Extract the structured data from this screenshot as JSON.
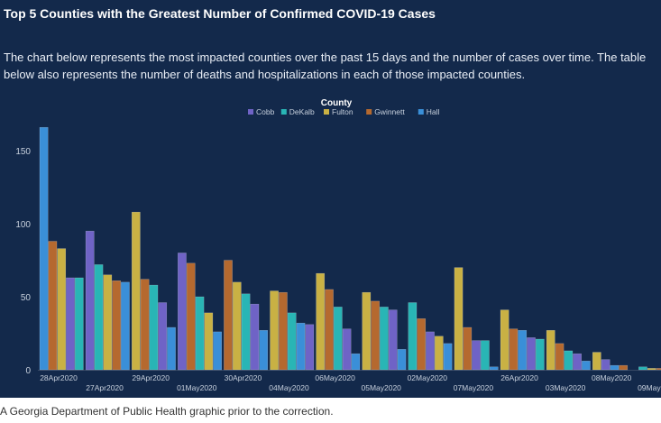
{
  "title": "Top 5 Counties with the Greatest Number of Confirmed COVID-19 Cases",
  "description": "The chart below represents the most impacted counties over the past 15 days and the number of cases over time. The table below also represents the number of deaths and hospitalizations in each of those impacted counties.",
  "caption": "A Georgia Department of Public Health graphic prior to the correction.",
  "chart_data": {
    "type": "bar",
    "title": "",
    "xlabel": "",
    "ylabel": "",
    "legend_title": "County",
    "legend_position": "top-center",
    "grid": false,
    "ylim": [
      0,
      168
    ],
    "yticks": [
      0,
      50,
      100,
      150
    ],
    "bars": [
      {
        "county": "Hall",
        "label": "28Apr2020",
        "value": 166,
        "color": "#3a8fd8"
      },
      {
        "county": "Gwinnett",
        "label": "",
        "value": 88,
        "color": "#b5692f"
      },
      {
        "county": "Fulton",
        "label": "",
        "value": 83,
        "color": "#c9b144"
      },
      {
        "county": "Cobb",
        "label": "",
        "value": 63,
        "color": "#6f63c6"
      },
      {
        "county": "DeKalb",
        "label": "",
        "value": 63,
        "color": "#29b5b5"
      },
      {
        "county": "Cobb",
        "label": "27Apr2020",
        "value": 95,
        "color": "#6f63c6"
      },
      {
        "county": "DeKalb",
        "label": "",
        "value": 72,
        "color": "#29b5b5"
      },
      {
        "county": "Fulton",
        "label": "",
        "value": 65,
        "color": "#c9b144"
      },
      {
        "county": "Gwinnett",
        "label": "",
        "value": 61,
        "color": "#b5692f"
      },
      {
        "county": "Hall",
        "label": "",
        "value": 60,
        "color": "#3a8fd8"
      },
      {
        "county": "Fulton",
        "label": "29Apr2020",
        "value": 108,
        "color": "#c9b144"
      },
      {
        "county": "Gwinnett",
        "label": "",
        "value": 62,
        "color": "#b5692f"
      },
      {
        "county": "DeKalb",
        "label": "",
        "value": 58,
        "color": "#29b5b5"
      },
      {
        "county": "Cobb",
        "label": "",
        "value": 46,
        "color": "#6f63c6"
      },
      {
        "county": "Hall",
        "label": "",
        "value": 29,
        "color": "#3a8fd8"
      },
      {
        "county": "Cobb",
        "label": "01May2020",
        "value": 80,
        "color": "#6f63c6"
      },
      {
        "county": "Gwinnett",
        "label": "",
        "value": 73,
        "color": "#b5692f"
      },
      {
        "county": "DeKalb",
        "label": "",
        "value": 50,
        "color": "#29b5b5"
      },
      {
        "county": "Fulton",
        "label": "",
        "value": 39,
        "color": "#c9b144"
      },
      {
        "county": "Hall",
        "label": "",
        "value": 26,
        "color": "#3a8fd8"
      },
      {
        "county": "Gwinnett",
        "label": "30Apr2020",
        "value": 75,
        "color": "#b5692f"
      },
      {
        "county": "Fulton",
        "label": "",
        "value": 60,
        "color": "#c9b144"
      },
      {
        "county": "DeKalb",
        "label": "",
        "value": 52,
        "color": "#29b5b5"
      },
      {
        "county": "Cobb",
        "label": "",
        "value": 45,
        "color": "#6f63c6"
      },
      {
        "county": "Hall",
        "label": "",
        "value": 27,
        "color": "#3a8fd8"
      },
      {
        "county": "Fulton",
        "label": "04May2020",
        "value": 54,
        "color": "#c9b144"
      },
      {
        "county": "Gwinnett",
        "label": "",
        "value": 53,
        "color": "#b5692f"
      },
      {
        "county": "DeKalb",
        "label": "",
        "value": 39,
        "color": "#29b5b5"
      },
      {
        "county": "Hall",
        "label": "",
        "value": 32,
        "color": "#3a8fd8"
      },
      {
        "county": "Cobb",
        "label": "",
        "value": 31,
        "color": "#6f63c6"
      },
      {
        "county": "Fulton",
        "label": "06May2020",
        "value": 66,
        "color": "#c9b144"
      },
      {
        "county": "Gwinnett",
        "label": "",
        "value": 55,
        "color": "#b5692f"
      },
      {
        "county": "DeKalb",
        "label": "",
        "value": 43,
        "color": "#29b5b5"
      },
      {
        "county": "Cobb",
        "label": "",
        "value": 28,
        "color": "#6f63c6"
      },
      {
        "county": "Hall",
        "label": "",
        "value": 11,
        "color": "#3a8fd8"
      },
      {
        "county": "Fulton",
        "label": "05May2020",
        "value": 53,
        "color": "#c9b144"
      },
      {
        "county": "Gwinnett",
        "label": "",
        "value": 47,
        "color": "#b5692f"
      },
      {
        "county": "DeKalb",
        "label": "",
        "value": 43,
        "color": "#29b5b5"
      },
      {
        "county": "Cobb",
        "label": "",
        "value": 41,
        "color": "#6f63c6"
      },
      {
        "county": "Hall",
        "label": "",
        "value": 14,
        "color": "#3a8fd8"
      },
      {
        "county": "DeKalb",
        "label": "02May2020",
        "value": 46,
        "color": "#29b5b5"
      },
      {
        "county": "Gwinnett",
        "label": "",
        "value": 35,
        "color": "#b5692f"
      },
      {
        "county": "Cobb",
        "label": "",
        "value": 26,
        "color": "#6f63c6"
      },
      {
        "county": "Fulton",
        "label": "",
        "value": 23,
        "color": "#c9b144"
      },
      {
        "county": "Hall",
        "label": "",
        "value": 18,
        "color": "#3a8fd8"
      },
      {
        "county": "Fulton",
        "label": "07May2020",
        "value": 70,
        "color": "#c9b144"
      },
      {
        "county": "Gwinnett",
        "label": "",
        "value": 29,
        "color": "#b5692f"
      },
      {
        "county": "Cobb",
        "label": "",
        "value": 20,
        "color": "#6f63c6"
      },
      {
        "county": "DeKalb",
        "label": "",
        "value": 20,
        "color": "#29b5b5"
      },
      {
        "county": "Hall",
        "label": "",
        "value": 2,
        "color": "#3a8fd8"
      },
      {
        "county": "Fulton",
        "label": "26Apr2020",
        "value": 41,
        "color": "#c9b144"
      },
      {
        "county": "Gwinnett",
        "label": "",
        "value": 28,
        "color": "#b5692f"
      },
      {
        "county": "Hall",
        "label": "",
        "value": 27,
        "color": "#3a8fd8"
      },
      {
        "county": "Cobb",
        "label": "",
        "value": 22,
        "color": "#6f63c6"
      },
      {
        "county": "DeKalb",
        "label": "",
        "value": 21,
        "color": "#29b5b5"
      },
      {
        "county": "Fulton",
        "label": "03May2020",
        "value": 27,
        "color": "#c9b144"
      },
      {
        "county": "Gwinnett",
        "label": "",
        "value": 18,
        "color": "#b5692f"
      },
      {
        "county": "DeKalb",
        "label": "",
        "value": 13,
        "color": "#29b5b5"
      },
      {
        "county": "Cobb",
        "label": "",
        "value": 11,
        "color": "#6f63c6"
      },
      {
        "county": "Hall",
        "label": "",
        "value": 6,
        "color": "#3a8fd8"
      },
      {
        "county": "Fulton",
        "label": "08May2020",
        "value": 12,
        "color": "#c9b144"
      },
      {
        "county": "Cobb",
        "label": "",
        "value": 7,
        "color": "#6f63c6"
      },
      {
        "county": "Hall",
        "label": "",
        "value": 3,
        "color": "#3a8fd8"
      },
      {
        "county": "Gwinnett",
        "label": "",
        "value": 3,
        "color": "#b5692f"
      },
      {
        "county": "DeKalb",
        "label": "",
        "value": 0,
        "color": "#29b5b5"
      },
      {
        "county": "DeKalb",
        "label": "09May2020",
        "value": 2,
        "color": "#29b5b5"
      },
      {
        "county": "Fulton",
        "label": "",
        "value": 1,
        "color": "#c9b144"
      },
      {
        "county": "Gwinnett",
        "label": "",
        "value": 1,
        "color": "#b5692f"
      }
    ],
    "legend": [
      {
        "name": "Cobb",
        "color": "#6f63c6"
      },
      {
        "name": "DeKalb",
        "color": "#29b5b5"
      },
      {
        "name": "Fulton",
        "color": "#c9b144"
      },
      {
        "name": "Gwinnett",
        "color": "#b5692f"
      },
      {
        "name": "Hall",
        "color": "#3a8fd8"
      }
    ]
  }
}
